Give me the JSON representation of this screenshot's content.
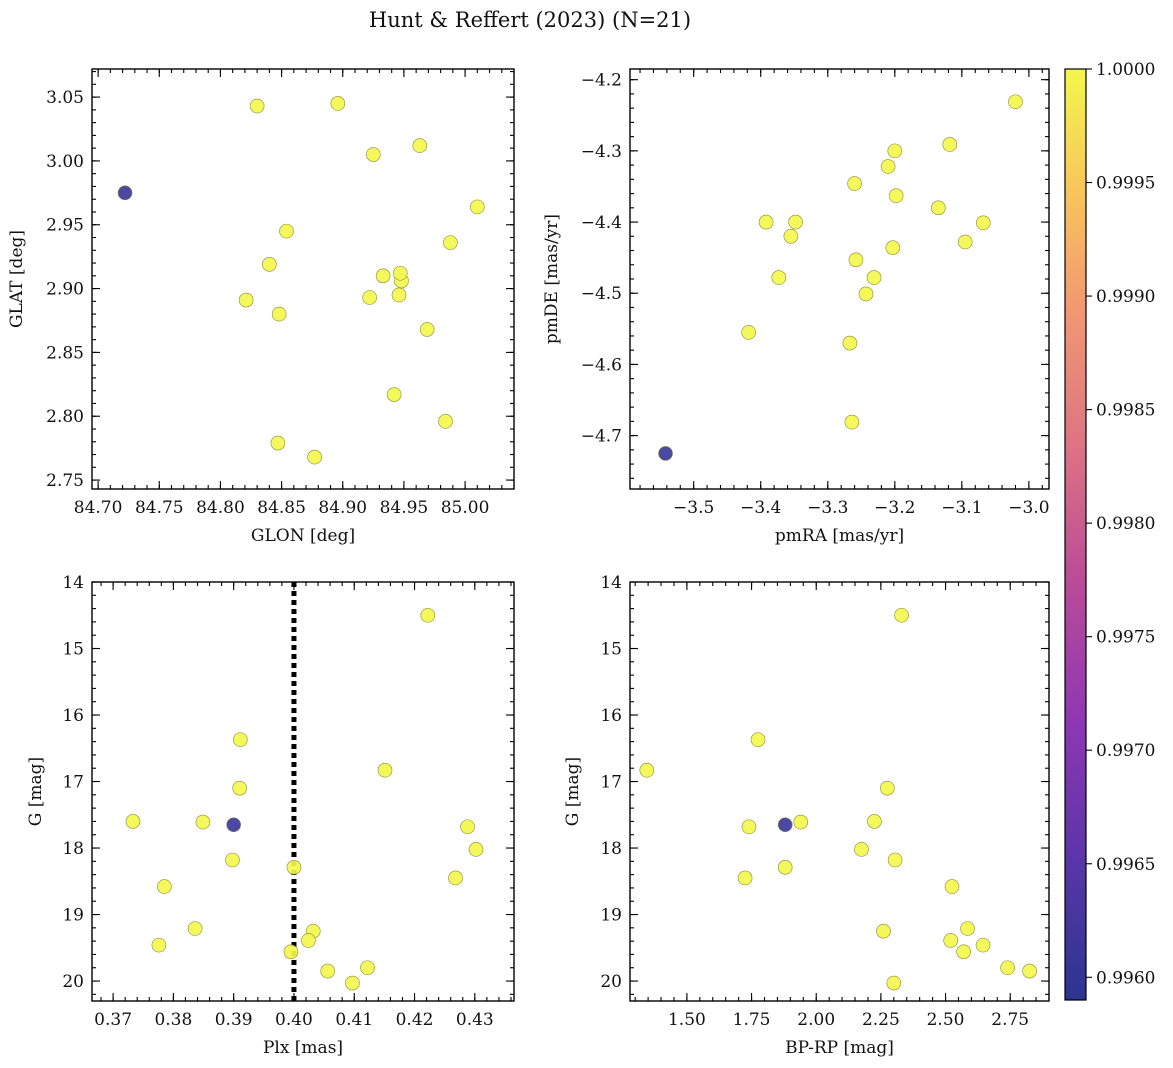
{
  "chart_data": {
    "title": "Hunt & Reffert (2023) (N=21)",
    "colorbar": {
      "min": 0.9959,
      "max": 1.0,
      "ticks": [
        0.996,
        0.9965,
        0.997,
        0.9975,
        0.998,
        0.9985,
        0.999,
        0.9995,
        1.0
      ],
      "tick_labels": [
        "0.9960",
        "0.9965",
        "0.9970",
        "0.9975",
        "0.9980",
        "0.9985",
        "0.9990",
        "0.9995",
        "1.0000"
      ],
      "colormap": "plasma"
    },
    "panels": [
      {
        "name": "glon-glat",
        "type": "scatter",
        "xlabel": "GLON [deg]",
        "ylabel": "GLAT [deg]",
        "xlim": [
          84.695,
          85.04
        ],
        "ylim": [
          2.743,
          3.072
        ],
        "invert_y": false,
        "xticks": [
          84.7,
          84.75,
          84.8,
          84.85,
          84.9,
          84.95,
          85.0
        ],
        "xtick_labels": [
          "84.70",
          "84.75",
          "84.80",
          "84.85",
          "84.90",
          "84.95",
          "85.00"
        ],
        "yticks": [
          2.75,
          2.8,
          2.85,
          2.9,
          2.95,
          3.0,
          3.05
        ],
        "ytick_labels": [
          "2.75",
          "2.80",
          "2.85",
          "2.90",
          "2.95",
          "3.00",
          "3.05"
        ],
        "x": [
          84.722,
          84.83,
          84.896,
          84.925,
          84.963,
          85.01,
          84.854,
          84.84,
          84.988,
          84.821,
          84.848,
          84.922,
          84.933,
          84.946,
          84.948,
          84.947,
          84.969,
          84.942,
          84.984,
          84.847,
          84.877
        ],
        "y": [
          2.975,
          3.043,
          3.045,
          3.005,
          3.012,
          2.964,
          2.945,
          2.919,
          2.936,
          2.891,
          2.88,
          2.893,
          2.91,
          2.895,
          2.906,
          2.912,
          2.868,
          2.817,
          2.796,
          2.779,
          2.768
        ],
        "vline": null
      },
      {
        "name": "pmra-pmde",
        "type": "scatter",
        "xlabel": "pmRA [mas/yr]",
        "ylabel": "pmDE [mas/yr]",
        "xlim": [
          -3.595,
          -2.97
        ],
        "ylim": [
          -4.775,
          -4.185
        ],
        "invert_y": false,
        "xticks": [
          -3.5,
          -3.4,
          -3.3,
          -3.2,
          -3.1,
          -3.0
        ],
        "xtick_labels": [
          "−3.5",
          "−3.4",
          "−3.3",
          "−3.2",
          "−3.1",
          "−3.0"
        ],
        "yticks": [
          -4.7,
          -4.6,
          -4.5,
          -4.4,
          -4.3,
          -4.2
        ],
        "ytick_labels": [
          "−4.7",
          "−4.6",
          "−4.5",
          "−4.4",
          "−4.3",
          "−4.2"
        ],
        "x": [
          -3.542,
          -3.02,
          -3.118,
          -3.2,
          -3.21,
          -3.26,
          -3.198,
          -3.135,
          -3.068,
          -3.392,
          -3.348,
          -3.355,
          -3.095,
          -3.203,
          -3.258,
          -3.373,
          -3.231,
          -3.243,
          -3.418,
          -3.267,
          -3.264
        ],
        "y": [
          -4.725,
          -4.231,
          -4.291,
          -4.3,
          -4.322,
          -4.346,
          -4.363,
          -4.38,
          -4.401,
          -4.4,
          -4.4,
          -4.42,
          -4.428,
          -4.436,
          -4.453,
          -4.478,
          -4.478,
          -4.501,
          -4.555,
          -4.57,
          -4.681
        ],
        "vline": null
      },
      {
        "name": "plx-g",
        "type": "scatter",
        "xlabel": "Plx [mas]",
        "ylabel": "G [mag]",
        "xlim": [
          0.3665,
          0.4365
        ],
        "ylim": [
          14.0,
          20.3
        ],
        "invert_y": true,
        "xticks": [
          0.37,
          0.38,
          0.39,
          0.4,
          0.41,
          0.42,
          0.43
        ],
        "xtick_labels": [
          "0.37",
          "0.38",
          "0.39",
          "0.40",
          "0.41",
          "0.42",
          "0.43"
        ],
        "yticks": [
          14,
          15,
          16,
          17,
          18,
          19,
          20
        ],
        "ytick_labels": [
          "14",
          "15",
          "16",
          "17",
          "18",
          "19",
          "20"
        ],
        "x": [
          0.39,
          0.4222,
          0.3911,
          0.4151,
          0.391,
          0.3733,
          0.3849,
          0.4288,
          0.4302,
          0.3898,
          0.4,
          0.4268,
          0.3785,
          0.3836,
          0.3776,
          0.4032,
          0.4024,
          0.3995,
          0.4122,
          0.4056,
          0.4097
        ],
        "y": [
          17.65,
          14.5,
          16.37,
          16.83,
          17.1,
          17.6,
          17.61,
          17.68,
          18.02,
          18.18,
          18.29,
          18.45,
          18.58,
          19.21,
          19.46,
          19.25,
          19.39,
          19.56,
          19.8,
          19.85,
          20.03
        ],
        "vline": 0.4
      },
      {
        "name": "bprp-g",
        "type": "scatter",
        "xlabel": "BP-RP [mag]",
        "ylabel": "G [mag]",
        "xlim": [
          1.28,
          2.9
        ],
        "ylim": [
          14.0,
          20.3
        ],
        "invert_y": true,
        "xticks": [
          1.5,
          1.75,
          2.0,
          2.25,
          2.5,
          2.75
        ],
        "xtick_labels": [
          "1.50",
          "1.75",
          "2.00",
          "2.25",
          "2.50",
          "2.75"
        ],
        "yticks": [
          14,
          15,
          16,
          17,
          18,
          19,
          20
        ],
        "ytick_labels": [
          "14",
          "15",
          "16",
          "17",
          "18",
          "19",
          "20"
        ],
        "x": [
          1.88,
          2.33,
          1.775,
          1.345,
          2.275,
          2.225,
          1.94,
          1.74,
          2.175,
          2.305,
          1.88,
          1.725,
          2.525,
          2.26,
          2.585,
          2.52,
          2.645,
          2.57,
          2.74,
          2.825,
          2.3
        ],
        "y": [
          17.65,
          14.5,
          16.37,
          16.83,
          17.1,
          17.6,
          17.61,
          17.68,
          18.02,
          18.18,
          18.29,
          18.45,
          18.58,
          19.25,
          19.21,
          19.39,
          19.46,
          19.56,
          19.8,
          19.85,
          20.03
        ],
        "vline": null
      }
    ],
    "membership": [
      0.9959,
      1.0,
      1.0,
      1.0,
      1.0,
      1.0,
      1.0,
      1.0,
      1.0,
      1.0,
      1.0,
      1.0,
      1.0,
      1.0,
      1.0,
      1.0,
      1.0,
      1.0,
      1.0,
      1.0,
      1.0
    ]
  }
}
